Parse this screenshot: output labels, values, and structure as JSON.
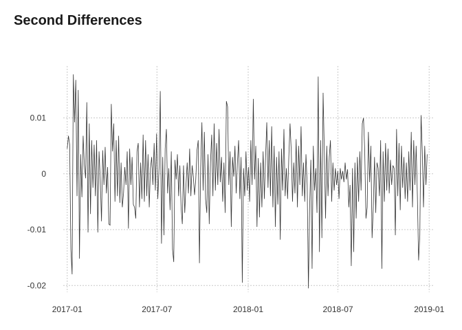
{
  "chart_data": {
    "type": "line",
    "title": "Second Differences",
    "xlabel": "",
    "ylabel": "",
    "x_ticks": [
      "2017-01",
      "2017-07",
      "2018-01",
      "2018-07",
      "2019-01"
    ],
    "y_ticks": [
      {
        "value": 0.01,
        "label": "0.01"
      },
      {
        "value": 0,
        "label": "0"
      },
      {
        "value": -0.01,
        "label": "-0.01"
      },
      {
        "value": -0.02,
        "label": "-0.02"
      }
    ],
    "xlim": [
      "2016-12-24",
      "2019-01-09"
    ],
    "ylim": [
      -0.0212,
      0.0193
    ],
    "grid": true,
    "legend": "none",
    "line_color": "#333333",
    "series": [
      {
        "values": [
          0.0045,
          0.0068,
          0.0052,
          -0.0135,
          -0.018,
          0.0178,
          0.0092,
          0.0168,
          -0.004,
          0.015,
          -0.0152,
          0.0035,
          -0.0042,
          0.0068,
          0.0015,
          -0.0008,
          0.0128,
          -0.0105,
          0.009,
          -0.0072,
          0.006,
          -0.0025,
          0.0052,
          -0.004,
          0.006,
          -0.0105,
          0.004,
          -0.001,
          -0.0085,
          0.0042,
          -0.002,
          0.0048,
          -0.0035,
          0.0012,
          -0.009,
          -0.0092,
          0.0125,
          0.004,
          0.009,
          -0.005,
          0.006,
          -0.004,
          0.0068,
          -0.0052,
          0.002,
          -0.006,
          -0.0035,
          0.0012,
          -0.002,
          0.004,
          -0.0098,
          0.0045,
          -0.002,
          0.003,
          -0.0055,
          -0.006,
          -0.008,
          0.004,
          0.0055,
          -0.006,
          0.002,
          -0.0045,
          0.007,
          -0.005,
          0.006,
          -0.004,
          0.0035,
          -0.006,
          0.001,
          0.003,
          -0.002,
          0.0055,
          -0.003,
          0.0072,
          -0.0045,
          0.001,
          0.0148,
          -0.0125,
          0.003,
          -0.011,
          0.0045,
          0.008,
          -0.0035,
          0.001,
          -0.0065,
          0.004,
          -0.0135,
          -0.0158,
          0.0025,
          -0.001,
          0.0035,
          -0.004,
          0.0015,
          -0.006,
          -0.009,
          0.0015,
          -0.007,
          -0.002,
          0.002,
          -0.0035,
          0.0045,
          -0.004,
          0.0015,
          -0.0005,
          -0.0038,
          -0.001,
          0.0042,
          0.006,
          -0.016,
          0.001,
          0.0092,
          -0.003,
          0.0075,
          -0.0045,
          -0.007,
          0.0035,
          -0.009,
          0.002,
          0.007,
          -0.004,
          0.009,
          -0.003,
          0.0055,
          -0.002,
          0.008,
          -0.0015,
          0.003,
          -0.005,
          0.002,
          -0.007,
          0.013,
          0.012,
          -0.002,
          0.004,
          -0.0095,
          0.003,
          -0.0005,
          0.005,
          -0.0035,
          0.002,
          0.006,
          -0.0045,
          0.003,
          -0.0195,
          0.001,
          -0.004,
          0.004,
          -0.003,
          0.0012,
          -0.005,
          0.006,
          -0.002,
          0.0134,
          -0.001,
          0.005,
          -0.0095,
          0.0028,
          -0.0078,
          0.002,
          -0.006,
          0.004,
          -0.0045,
          0.003,
          0.0092,
          -0.0025,
          0.006,
          -0.004,
          0.0085,
          -0.006,
          0.005,
          -0.0095,
          0.003,
          -0.0055,
          0.004,
          -0.0118,
          0.0045,
          -0.003,
          0.008,
          -0.004,
          0.001,
          -0.0045,
          0.003,
          0.009,
          0.004,
          -0.005,
          0.002,
          -0.0035,
          0.0062,
          -0.006,
          0.005,
          -0.002,
          0.0085,
          -0.004,
          0.002,
          -0.005,
          0.0035,
          -0.002,
          -0.0205,
          -0.006,
          0.0025,
          -0.017,
          0.005,
          -0.003,
          0.001,
          -0.007,
          0.0174,
          -0.014,
          0.006,
          -0.0115,
          0.0145,
          0.004,
          -0.008,
          0.005,
          -0.004,
          0.003,
          0.006,
          -0.005,
          0.002,
          -0.003,
          0.001,
          -0.002,
          0.0005,
          -0.0045,
          0.001,
          -0.001,
          0.0005,
          -0.0015,
          0.002,
          -0.001,
          0.0008,
          -0.006,
          -0.002,
          -0.0165,
          0.001,
          -0.014,
          0.002,
          -0.008,
          0.003,
          -0.005,
          0.004,
          -0.003,
          0.009,
          0.01,
          0.004,
          -0.008,
          -0.006,
          0.0075,
          -0.0015,
          0.005,
          -0.0115,
          -0.006,
          0.003,
          -0.007,
          0.002,
          0.001,
          -0.004,
          0.006,
          -0.017,
          0.004,
          -0.005,
          0.0055,
          -0.003,
          0.0045,
          -0.0035,
          0.0025,
          -0.002,
          0.0015,
          0.001,
          -0.011,
          0.008,
          -0.004,
          0.0055,
          -0.0065,
          0.005,
          -0.0025,
          0.003,
          -0.0045,
          0.002,
          -0.005,
          0.004,
          -0.003,
          0.0075,
          -0.006,
          0.006,
          -0.002,
          0.005,
          -0.004,
          -0.0155,
          -0.011,
          0.0105,
          0.004,
          -0.006,
          0.005,
          -0.002,
          0.0035
        ]
      }
    ]
  }
}
